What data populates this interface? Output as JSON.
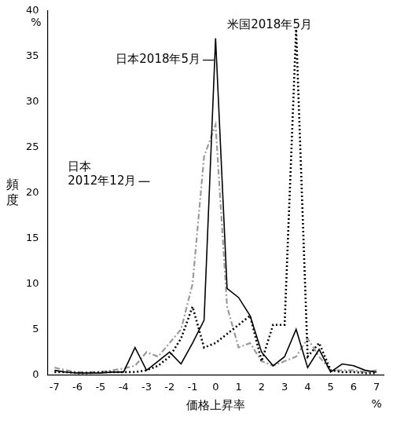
{
  "chart_data": {
    "type": "line",
    "x_label": "価格上昇率",
    "y_label": "頻度",
    "x_unit": "%",
    "y_unit": "%",
    "x": [
      -7,
      -6.5,
      -6,
      -5.5,
      -5,
      -4.5,
      -4,
      -3.5,
      -3,
      -2.5,
      -2,
      -1.5,
      -1,
      -0.5,
      0,
      0.5,
      1,
      1.5,
      2,
      2.5,
      3,
      3.5,
      4,
      4.5,
      5,
      5.5,
      6,
      6.5,
      7
    ],
    "series": [
      {
        "name": "日本2018年5月",
        "color": "#000000",
        "line_style": "solid",
        "values": [
          0.5,
          0.3,
          0.2,
          0.2,
          0.2,
          0.3,
          0.3,
          3,
          0.5,
          1.5,
          2.5,
          1.2,
          3.5,
          6,
          37,
          9.5,
          8.5,
          6.5,
          2.5,
          1,
          2,
          5,
          0.8,
          2.8,
          0.3,
          1.2,
          1,
          0.5,
          0.3
        ]
      },
      {
        "name": "米国2018年5月",
        "color": "#000000",
        "line_style": "dotted",
        "values": [
          0.3,
          0.3,
          0.2,
          0.2,
          0.3,
          0.3,
          0.3,
          0.3,
          0.5,
          1,
          2,
          4,
          7.5,
          3,
          3.5,
          4.5,
          5.5,
          6.5,
          1.5,
          5.5,
          5.5,
          38,
          2,
          3.5,
          0.5,
          0.3,
          0.3,
          0.2,
          0.2
        ]
      },
      {
        "name": "日本\n2012年12月",
        "color": "#9a9a9a",
        "line_style": "dashdot",
        "values": [
          0.8,
          0.5,
          0.3,
          0.3,
          0.3,
          0.5,
          0.7,
          1,
          2.5,
          2,
          3.5,
          5,
          10,
          24,
          27.5,
          7.5,
          3,
          3.5,
          1.5,
          1,
          1.5,
          2,
          4,
          2,
          0.5,
          0.5,
          0.5,
          0.3,
          0.5
        ]
      }
    ],
    "xlim": [
      -7.3,
      7.3
    ],
    "xticks": [
      -7,
      -6,
      -5,
      -4,
      -3,
      -2,
      -1,
      0,
      1,
      2,
      3,
      4,
      5,
      6,
      7
    ],
    "ylim": [
      0,
      40
    ],
    "yticks": [
      0,
      5,
      10,
      15,
      20,
      25,
      30,
      35,
      40
    ],
    "grid": false
  }
}
